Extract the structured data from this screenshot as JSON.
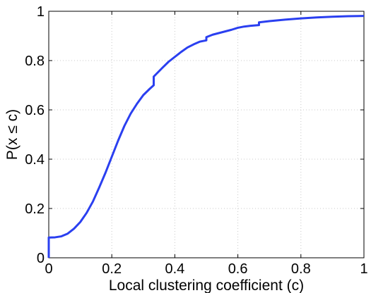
{
  "chart_data": {
    "type": "line",
    "title": "",
    "xlabel": "Local clustering coefficient (c)",
    "ylabel": "P(x ≤ c)",
    "xlim": [
      0,
      1
    ],
    "ylim": [
      0,
      1
    ],
    "x_ticks": [
      0,
      0.2,
      0.4,
      0.6,
      0.8,
      1
    ],
    "x_tick_labels": [
      "0",
      "0.2",
      "0.4",
      "0.6",
      "0.8",
      "1"
    ],
    "y_ticks": [
      0,
      0.2,
      0.4,
      0.6,
      0.8,
      1
    ],
    "y_tick_labels": [
      "0",
      "0.2",
      "0.4",
      "0.6",
      "0.8",
      "1"
    ],
    "grid": true,
    "legend": "none",
    "series": [
      {
        "color": "#2a3ff0",
        "x": [
          0,
          0,
          0.02,
          0.04,
          0.06,
          0.08,
          0.1,
          0.12,
          0.14,
          0.16,
          0.18,
          0.2,
          0.22,
          0.24,
          0.26,
          0.28,
          0.3,
          0.32,
          0.333,
          0.333,
          0.36,
          0.38,
          0.4,
          0.42,
          0.44,
          0.46,
          0.48,
          0.5,
          0.5,
          0.52,
          0.55,
          0.58,
          0.6,
          0.62,
          0.64,
          0.667,
          0.667,
          0.7,
          0.75,
          0.8,
          0.85,
          0.9,
          0.95,
          1.0
        ],
        "y": [
          0,
          0.082,
          0.083,
          0.087,
          0.098,
          0.118,
          0.145,
          0.182,
          0.228,
          0.285,
          0.345,
          0.41,
          0.475,
          0.535,
          0.585,
          0.625,
          0.66,
          0.685,
          0.7,
          0.735,
          0.77,
          0.795,
          0.815,
          0.835,
          0.853,
          0.866,
          0.877,
          0.882,
          0.895,
          0.905,
          0.915,
          0.925,
          0.933,
          0.938,
          0.941,
          0.944,
          0.955,
          0.96,
          0.966,
          0.971,
          0.975,
          0.978,
          0.98,
          0.981
        ]
      }
    ]
  }
}
